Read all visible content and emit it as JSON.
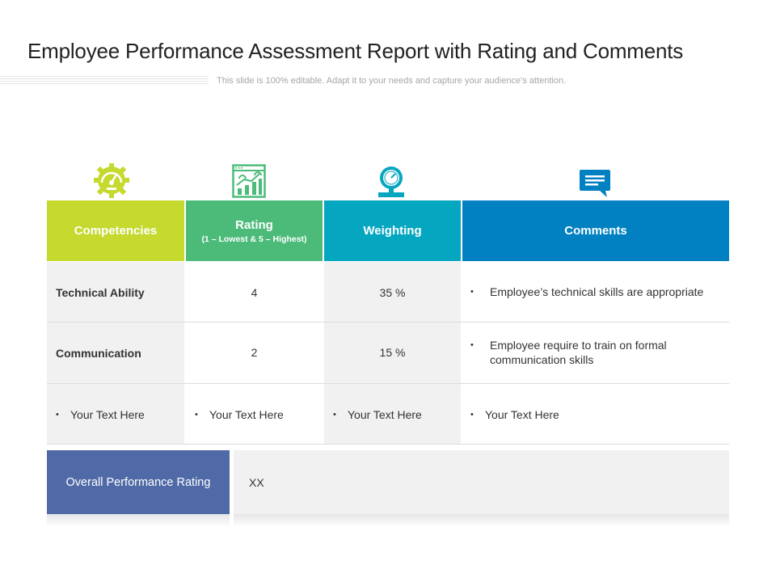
{
  "slide": {
    "title": "Employee Performance Assessment Report with Rating and Comments",
    "subtitle": "This slide is 100% editable. Adapt it to your needs and capture your audience’s attention."
  },
  "icons": {
    "competencies": "gear-gauge-icon",
    "rating": "growth-chart-icon",
    "weighting": "weighing-scale-icon",
    "comments": "speech-bubble-icon"
  },
  "colors": {
    "competencies": "#c5d92f",
    "rating": "#4cbb7a",
    "weighting": "#05a6c0",
    "comments": "#0281c2",
    "overall": "#4f6aa6"
  },
  "table": {
    "headers": {
      "competencies": "Competencies",
      "rating": "Rating",
      "rating_sub": "(1 – Lowest & 5 – Highest)",
      "weighting": "Weighting",
      "comments": "Comments"
    },
    "rows": [
      {
        "competency": "Technical Ability",
        "rating": "4",
        "weighting": "35 %",
        "comment": "Employee’s technical skills are appropriate"
      },
      {
        "competency": "Communication",
        "rating": "2",
        "weighting": "15 %",
        "comment": "Employee require to train on formal communication skills"
      },
      {
        "competency": "Your Text Here",
        "rating": "Your Text Here",
        "weighting": "Your Text Here",
        "comment": "Your Text Here"
      }
    ],
    "bullet": "•"
  },
  "overall": {
    "label": "Overall Performance Rating",
    "value": "XX"
  }
}
